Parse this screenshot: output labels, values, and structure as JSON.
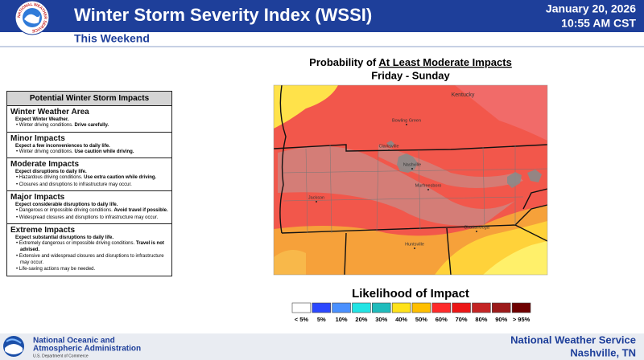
{
  "header": {
    "title": "Winter Storm Severity Index (WSSI)",
    "subtitle": "This Weekend",
    "date": "January 20, 2026",
    "time": "10:55 AM CST",
    "logo_text": "NATIONAL WEATHER SERVICE"
  },
  "impacts": {
    "title": "Potential Winter Storm Impacts",
    "levels": [
      {
        "name": "Winter Weather Area",
        "lead": "Expect Winter Weather.",
        "bullets": [
          [
            {
              "t": "Winter driving conditions. "
            },
            {
              "t": "Drive carefully.",
              "b": true
            }
          ]
        ]
      },
      {
        "name": "Minor Impacts",
        "lead": "Expect a few inconveniences to daily life.",
        "bullets": [
          [
            {
              "t": "Winter driving conditions. "
            },
            {
              "t": "Use caution while driving.",
              "b": true
            }
          ]
        ]
      },
      {
        "name": "Moderate Impacts",
        "lead": "Expect disruptions to daily life.",
        "bullets": [
          [
            {
              "t": "Hazardous driving conditions. "
            },
            {
              "t": "Use extra caution while driving.",
              "b": true
            }
          ],
          [
            {
              "t": "Closures and disruptions to infrastructure may occur."
            }
          ]
        ]
      },
      {
        "name": "Major Impacts",
        "lead": "Expect considerable disruptions to daily life.",
        "bullets": [
          [
            {
              "t": "Dangerous or impossible driving conditions. "
            },
            {
              "t": "Avoid travel if possible.",
              "b": true
            }
          ],
          [
            {
              "t": "Widespread closures and disruptions to infrastructure may occur."
            }
          ]
        ]
      },
      {
        "name": "Extreme Impacts",
        "lead": "Expect substantial disruptions to daily life.",
        "bullets": [
          [
            {
              "t": "Extremely dangerous or impossible driving conditions. "
            },
            {
              "t": "Travel is not advised.",
              "b": true
            }
          ],
          [
            {
              "t": "Extensive and widespread closures and disruptions to infrastructure may occur."
            }
          ],
          [
            {
              "t": "Life-saving actions may be needed."
            }
          ]
        ]
      }
    ]
  },
  "map": {
    "title_prefix": "Probability of ",
    "title_underlined": "At Least Moderate Impacts",
    "subtitle": "Friday - Sunday",
    "places": [
      "Kentucky",
      "Bowling Green",
      "Clarksville",
      "Nashville",
      "Murfreesboro",
      "Jackson",
      "Huntsville",
      "Chattanooga"
    ]
  },
  "legend": {
    "title": "Likelihood of Impact",
    "labels": [
      "< 5%",
      "5%",
      "10%",
      "20%",
      "30%",
      "40%",
      "50%",
      "60%",
      "70%",
      "80%",
      "90%",
      "> 95%"
    ],
    "colors": [
      "#ffffff",
      "#2c48ff",
      "#4a90ff",
      "#22e4e4",
      "#1fbcbc",
      "#ffe21a",
      "#ffbf00",
      "#ff2a2a",
      "#ec1616",
      "#c42424",
      "#9c1a1a",
      "#6e0000"
    ]
  },
  "footer": {
    "agency_line1": "National Oceanic and",
    "agency_line2": "Atmospheric Administration",
    "department": "U.S. Department of Commerce",
    "office": "National Weather Service",
    "location": "Nashville, TN"
  }
}
